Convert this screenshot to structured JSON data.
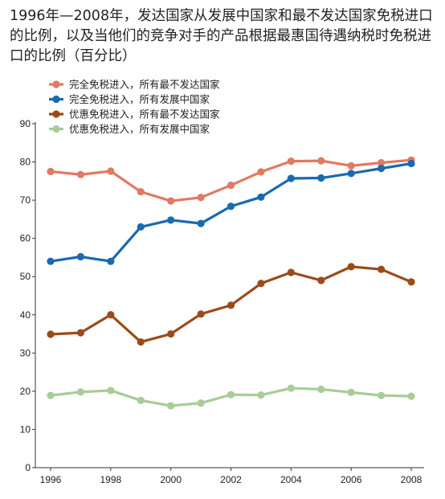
{
  "chart_data": {
    "type": "line",
    "title": "1996年—2008年，发达国家从发展中国家和最不发达国家免税进口的比例，以及当他们的竞争对手的产品根据最惠国待遇纳税时免税进口的比例（百分比）",
    "xlabel": "",
    "ylabel": "",
    "x": [
      1996,
      1997,
      1998,
      1999,
      2000,
      2001,
      2002,
      2003,
      2004,
      2005,
      2006,
      2007,
      2008
    ],
    "x_tick_labels": [
      "1996",
      "1998",
      "2000",
      "2002",
      "2004",
      "2006",
      "2008"
    ],
    "y_ticks": [
      0,
      10,
      20,
      30,
      40,
      50,
      60,
      70,
      80,
      90
    ],
    "ylim": [
      0,
      90
    ],
    "grid": false,
    "legend_position": "top-left",
    "series": [
      {
        "name": "完全免税进入，所有最不发达国家",
        "color": "#e07a63",
        "values": [
          77.5,
          76.7,
          77.6,
          72.2,
          69.8,
          70.7,
          73.9,
          77.4,
          80.2,
          80.3,
          79.0,
          79.8,
          80.5
        ]
      },
      {
        "name": "完全免税进入，所有发展中国家",
        "color": "#1a6ab0",
        "values": [
          54.0,
          55.2,
          54.0,
          63.0,
          64.8,
          63.9,
          68.4,
          70.8,
          75.7,
          75.8,
          77.0,
          78.3,
          79.6
        ]
      },
      {
        "name": "优惠免税进入，所有最不发达国家",
        "color": "#9b4b1b",
        "values": [
          34.9,
          35.3,
          40.0,
          32.9,
          35.0,
          40.2,
          42.5,
          48.2,
          51.1,
          49.0,
          52.6,
          51.9,
          48.6
        ]
      },
      {
        "name": "优惠免税进入，所有发展中国家",
        "color": "#a9cc98",
        "values": [
          18.9,
          19.8,
          20.2,
          17.6,
          16.2,
          16.9,
          19.1,
          19.0,
          20.8,
          20.5,
          19.7,
          18.9,
          18.7
        ]
      }
    ]
  }
}
